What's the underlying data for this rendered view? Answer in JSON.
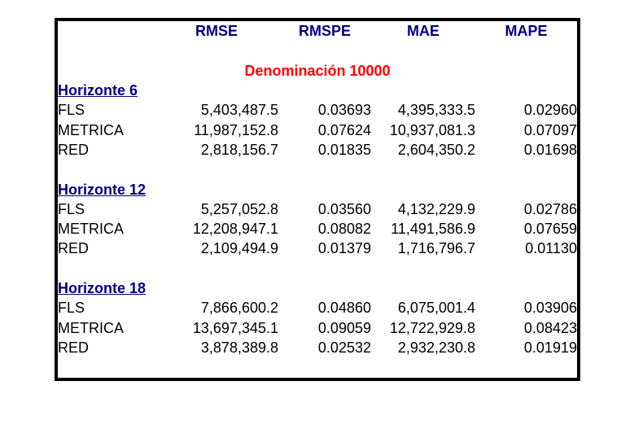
{
  "colors": {
    "header_text": "#000080",
    "subtitle_text": "#ff0000",
    "data_text": "#000000",
    "border": "#000000",
    "background": "#ffffff"
  },
  "table": {
    "headers": [
      "RMSE",
      "RMSPE",
      "MAE",
      "MAPE"
    ],
    "subtitle": "Denominación 10000",
    "sections": [
      {
        "title": "Horizonte 6",
        "rows": [
          {
            "label": "FLS",
            "rmse": "5,403,487.5",
            "rmspe": "0.03693",
            "mae": "4,395,333.5",
            "mape": "0.02960"
          },
          {
            "label": "METRICA",
            "rmse": "11,987,152.8",
            "rmspe": "0.07624",
            "mae": "10,937,081.3",
            "mape": "0.07097"
          },
          {
            "label": "RED",
            "rmse": "2,818,156.7",
            "rmspe": "0.01835",
            "mae": "2,604,350.2",
            "mape": "0.01698"
          }
        ]
      },
      {
        "title": "Horizonte 12",
        "rows": [
          {
            "label": "FLS",
            "rmse": "5,257,052.8",
            "rmspe": "0.03560",
            "mae": "4,132,229.9",
            "mape": "0.02786"
          },
          {
            "label": "METRICA",
            "rmse": "12,208,947.1",
            "rmspe": "0.08082",
            "mae": "11,491,586.9",
            "mape": "0.07659"
          },
          {
            "label": "RED",
            "rmse": "2,109,494.9",
            "rmspe": "0.01379",
            "mae": "1,716,796.7",
            "mape": "0.01130"
          }
        ]
      },
      {
        "title": "Horizonte 18",
        "rows": [
          {
            "label": "FLS",
            "rmse": "7,866,600.2",
            "rmspe": "0.04860",
            "mae": "6,075,001.4",
            "mape": "0.03906"
          },
          {
            "label": "METRICA",
            "rmse": "13,697,345.1",
            "rmspe": "0.09059",
            "mae": "12,722,929.8",
            "mape": "0.08423"
          },
          {
            "label": "RED",
            "rmse": "3,878,389.8",
            "rmspe": "0.02532",
            "mae": "2,932,230.8",
            "mape": "0.01919"
          }
        ]
      }
    ]
  },
  "chart_data": {
    "type": "table",
    "title": "Denominación 10000",
    "columns": [
      "",
      "RMSE",
      "RMSPE",
      "MAE",
      "MAPE"
    ],
    "groups": [
      {
        "group": "Horizonte 6",
        "rows": [
          [
            "FLS",
            5403487.5,
            0.03693,
            4395333.5,
            0.0296
          ],
          [
            "METRICA",
            11987152.8,
            0.07624,
            10937081.3,
            0.07097
          ],
          [
            "RED",
            2818156.7,
            0.01835,
            2604350.2,
            0.01698
          ]
        ]
      },
      {
        "group": "Horizonte 12",
        "rows": [
          [
            "FLS",
            5257052.8,
            0.0356,
            4132229.9,
            0.02786
          ],
          [
            "METRICA",
            12208947.1,
            0.08082,
            11491586.9,
            0.07659
          ],
          [
            "RED",
            2109494.9,
            0.01379,
            1716796.7,
            0.0113
          ]
        ]
      },
      {
        "group": "Horizonte 18",
        "rows": [
          [
            "FLS",
            7866600.2,
            0.0486,
            6075001.4,
            0.03906
          ],
          [
            "METRICA",
            13697345.1,
            0.09059,
            12722929.8,
            0.08423
          ],
          [
            "RED",
            3878389.8,
            0.02532,
            2932230.8,
            0.01919
          ]
        ]
      }
    ]
  }
}
